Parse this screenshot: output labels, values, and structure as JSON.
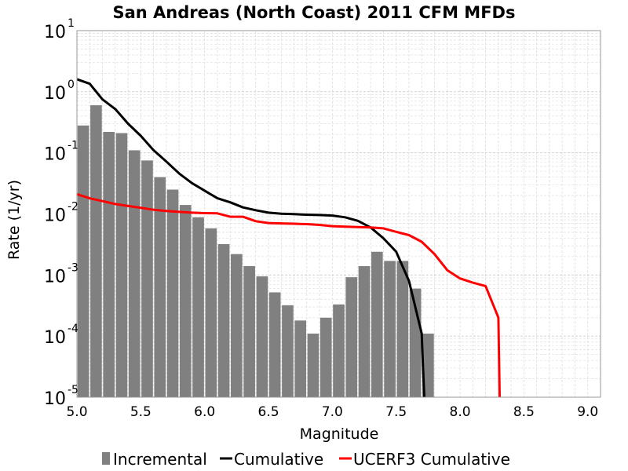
{
  "chart_data": {
    "type": "bar",
    "title": "San Andreas (North Coast) 2011 CFM MFDs",
    "xlabel": "Magnitude",
    "ylabel": "Rate (1/yr)",
    "xlim": [
      5.0,
      9.1
    ],
    "ylim": [
      1e-05,
      10
    ],
    "yscale": "log",
    "grid": true,
    "legend_position": "bottom",
    "x_ticks": [
      "5.0",
      "5.5",
      "6.0",
      "6.5",
      "7.0",
      "7.5",
      "8.0",
      "8.5",
      "9.0"
    ],
    "y_ticks": [
      {
        "base": "10",
        "exp": "1"
      },
      {
        "base": "10",
        "exp": "0"
      },
      {
        "base": "10",
        "exp": "-1"
      },
      {
        "base": "10",
        "exp": "-2"
      },
      {
        "base": "10",
        "exp": "-3"
      },
      {
        "base": "10",
        "exp": "-4"
      },
      {
        "base": "10",
        "exp": "-5"
      }
    ],
    "series": [
      {
        "name": "Incremental",
        "kind": "bar",
        "color": "#808080",
        "x": [
          5.05,
          5.15,
          5.25,
          5.35,
          5.45,
          5.55,
          5.65,
          5.75,
          5.85,
          5.95,
          6.05,
          6.15,
          6.25,
          6.35,
          6.45,
          6.55,
          6.65,
          6.75,
          6.85,
          6.95,
          7.05,
          7.15,
          7.25,
          7.35,
          7.45,
          7.55,
          7.65,
          7.75
        ],
        "y": [
          0.28,
          0.6,
          0.22,
          0.21,
          0.11,
          0.075,
          0.04,
          0.025,
          0.014,
          0.0088,
          0.0058,
          0.0032,
          0.0022,
          0.0014,
          0.00095,
          0.00052,
          0.00032,
          0.00018,
          0.00011,
          0.0002,
          0.00033,
          0.00092,
          0.0014,
          0.0024,
          0.0017,
          0.0017,
          0.0006,
          0.00011
        ]
      },
      {
        "name": "Cumulative",
        "kind": "line",
        "color": "#000000",
        "x": [
          5.0,
          5.1,
          5.2,
          5.3,
          5.4,
          5.5,
          5.6,
          5.7,
          5.8,
          5.9,
          6.0,
          6.1,
          6.2,
          6.3,
          6.4,
          6.5,
          6.6,
          6.7,
          6.8,
          6.9,
          7.0,
          7.1,
          7.2,
          7.3,
          7.4,
          7.5,
          7.6,
          7.7,
          7.71,
          7.72
        ],
        "y": [
          1.6,
          1.35,
          0.75,
          0.52,
          0.3,
          0.19,
          0.11,
          0.072,
          0.046,
          0.032,
          0.024,
          0.018,
          0.0155,
          0.0128,
          0.0115,
          0.0105,
          0.0101,
          0.0099,
          0.0097,
          0.0096,
          0.0094,
          0.0088,
          0.0077,
          0.006,
          0.004,
          0.0024,
          0.0008,
          0.00011,
          3e-05,
          1e-05
        ]
      },
      {
        "name": "UCERF3 Cumulative",
        "kind": "line",
        "color": "#ff0000",
        "x": [
          5.0,
          5.1,
          5.2,
          5.3,
          5.4,
          5.5,
          5.6,
          5.7,
          5.8,
          5.9,
          6.0,
          6.1,
          6.2,
          6.3,
          6.4,
          6.5,
          6.6,
          6.7,
          6.8,
          6.9,
          7.0,
          7.1,
          7.2,
          7.3,
          7.4,
          7.5,
          7.6,
          7.7,
          7.8,
          7.9,
          8.0,
          8.1,
          8.2,
          8.3,
          8.31
        ],
        "y": [
          0.021,
          0.018,
          0.0162,
          0.0145,
          0.0135,
          0.0126,
          0.0117,
          0.0112,
          0.0108,
          0.0105,
          0.0103,
          0.0102,
          0.009,
          0.009,
          0.0076,
          0.0071,
          0.007,
          0.0069,
          0.0068,
          0.0066,
          0.0063,
          0.0062,
          0.0061,
          0.006,
          0.0058,
          0.0051,
          0.0045,
          0.0035,
          0.0022,
          0.0012,
          0.00088,
          0.00075,
          0.00066,
          0.0002,
          1e-05
        ]
      }
    ],
    "legend": [
      {
        "label": "Incremental",
        "kind": "bar",
        "color": "#808080"
      },
      {
        "label": "Cumulative",
        "kind": "line",
        "color": "#000000"
      },
      {
        "label": "UCERF3 Cumulative",
        "kind": "line",
        "color": "#ff0000"
      }
    ]
  }
}
